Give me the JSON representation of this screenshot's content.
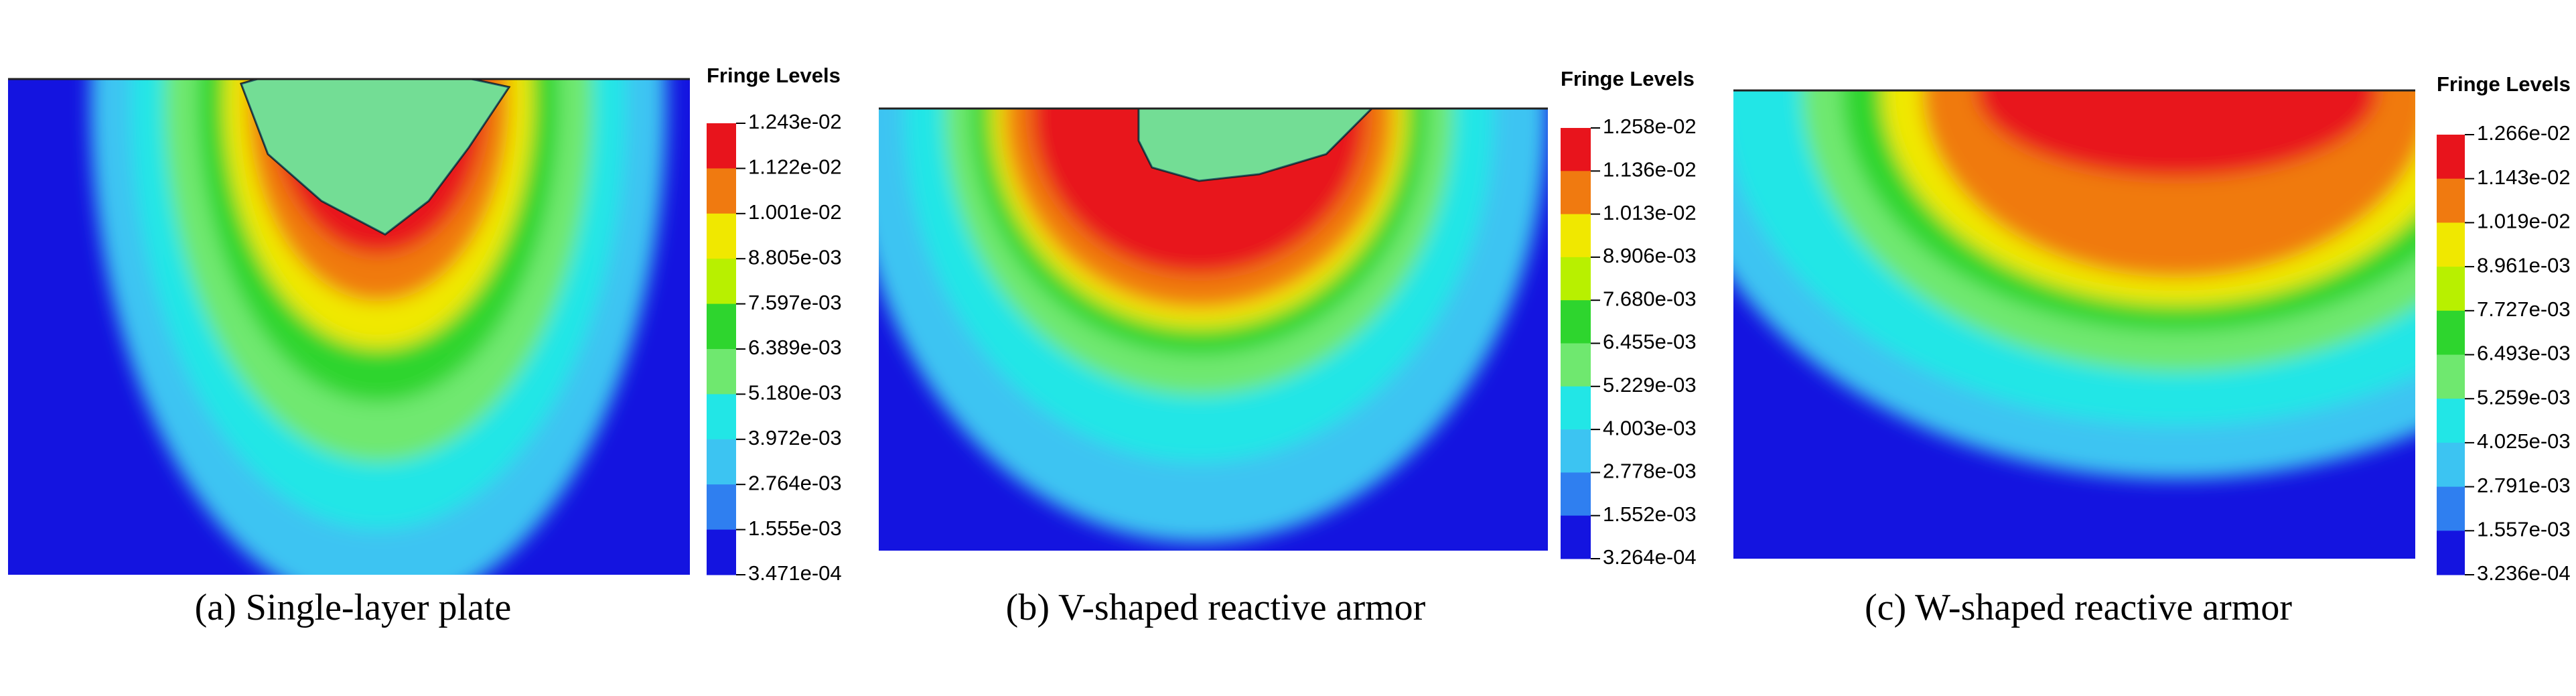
{
  "panels": [
    {
      "caption": "(a) Single-layer plate",
      "legend_title": "Fringe Levels",
      "levels": [
        "1.243e-02",
        "1.122e-02",
        "1.001e-02",
        "8.805e-03",
        "7.597e-03",
        "6.389e-03",
        "5.180e-03",
        "3.972e-03",
        "2.764e-03",
        "1.555e-03",
        "3.471e-04"
      ]
    },
    {
      "caption": "(b) V-shaped reactive armor",
      "legend_title": "Fringe Levels",
      "levels": [
        "1.258e-02",
        "1.136e-02",
        "1.013e-02",
        "8.906e-03",
        "7.680e-03",
        "6.455e-03",
        "5.229e-03",
        "4.003e-03",
        "2.778e-03",
        "1.552e-03",
        "3.264e-04"
      ]
    },
    {
      "caption": "(c) W-shaped reactive armor",
      "legend_title": "Fringe Levels",
      "levels": [
        "1.266e-02",
        "1.143e-02",
        "1.019e-02",
        "8.961e-03",
        "7.727e-03",
        "6.493e-03",
        "5.259e-03",
        "4.025e-03",
        "2.791e-03",
        "1.557e-03",
        "3.236e-04"
      ]
    }
  ]
}
